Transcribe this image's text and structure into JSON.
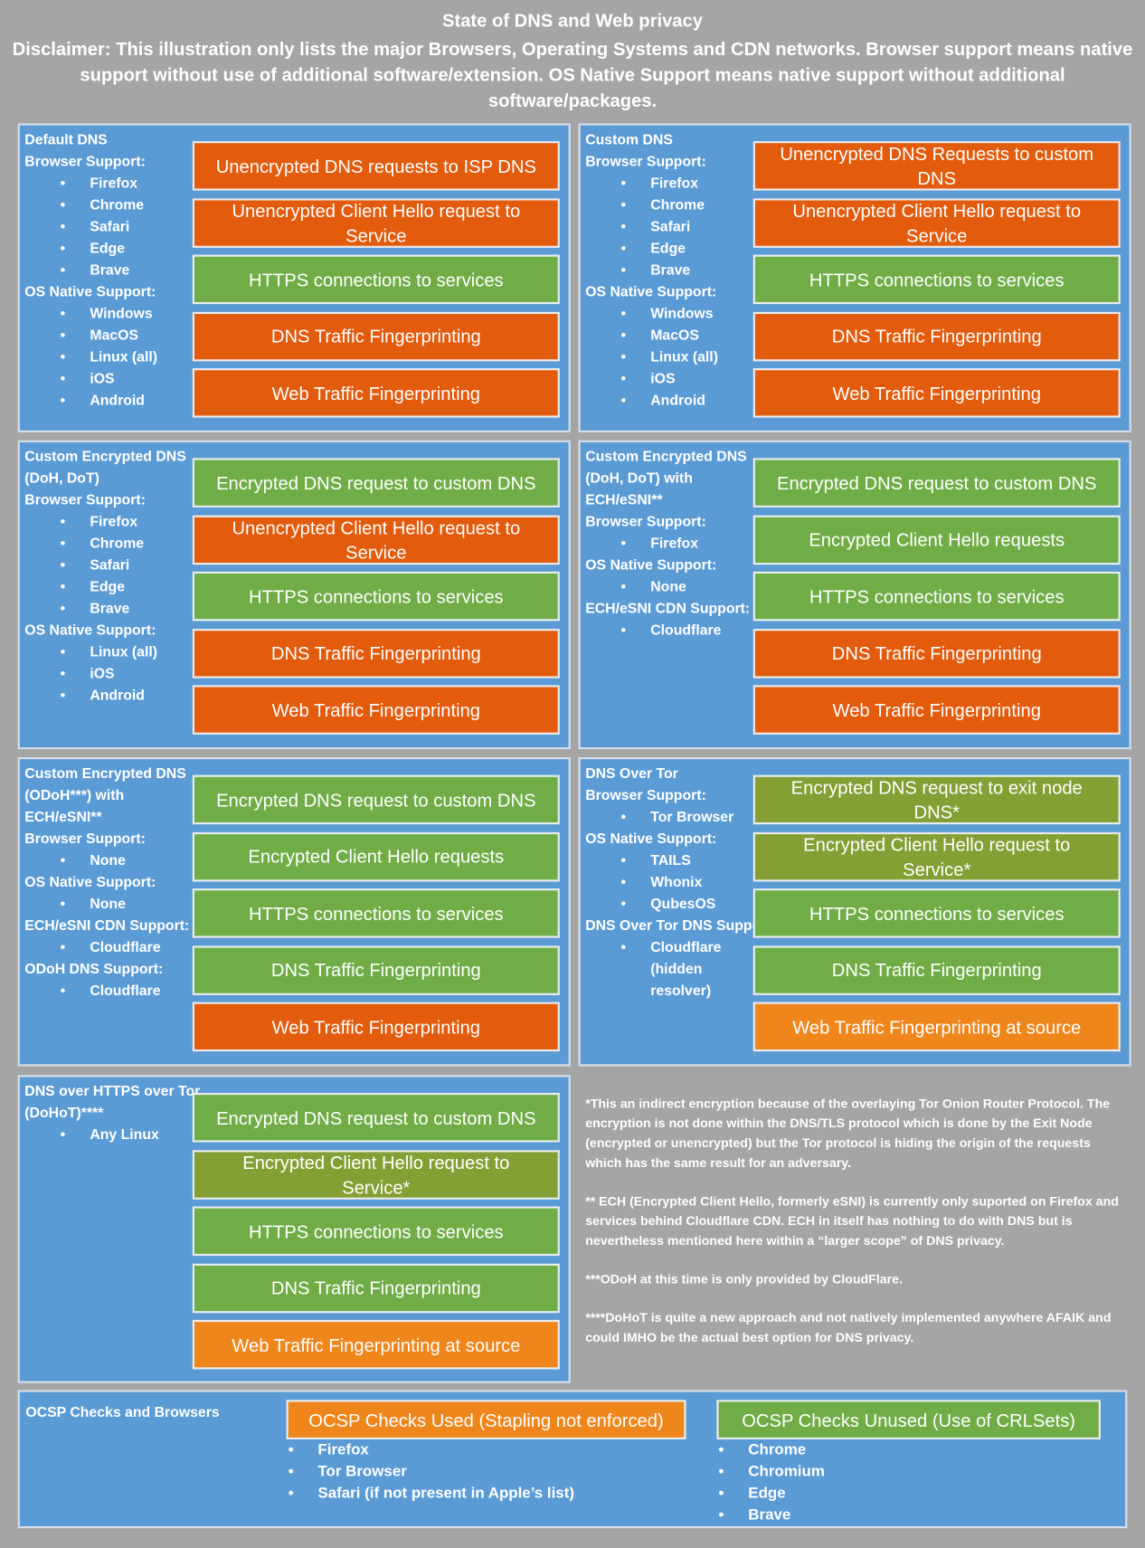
{
  "header": {
    "title": "State of DNS and Web privacy",
    "disclaimer": "Disclaimer: This illustration only lists the major Browsers, Operating Systems and CDN networks. Browser support means native support without use of additional software/extension. OS Native Support means native support without additional software/packages."
  },
  "panels": [
    {
      "title": "Default DNS",
      "sections": [
        {
          "label": "Browser Support:",
          "items": [
            "Firefox",
            "Chrome",
            "Safari",
            "Edge",
            "Brave"
          ]
        },
        {
          "label": "OS Native Support:",
          "items": [
            "Windows",
            "MacOS",
            "Linux (all)",
            "iOS",
            "Android"
          ]
        }
      ],
      "boxes": [
        {
          "text": "Unencrypted DNS requests to ISP DNS",
          "color": "#e35b0d"
        },
        {
          "text": "Unencrypted Client Hello request to Service",
          "color": "#e35b0d"
        },
        {
          "text": "HTTPS connections to services",
          "color": "#70ad47"
        },
        {
          "text": "DNS Traffic Fingerprinting",
          "color": "#e35b0d"
        },
        {
          "text": "Web Traffic Fingerprinting",
          "color": "#e35b0d"
        }
      ]
    },
    {
      "title": "Custom DNS",
      "sections": [
        {
          "label": "Browser Support:",
          "items": [
            "Firefox",
            "Chrome",
            "Safari",
            "Edge",
            "Brave"
          ]
        },
        {
          "label": "OS Native Support:",
          "items": [
            "Windows",
            "MacOS",
            "Linux (all)",
            "iOS",
            "Android"
          ]
        }
      ],
      "boxes": [
        {
          "text": "Unencrypted DNS Requests to custom DNS",
          "color": "#e35b0d"
        },
        {
          "text": "Unencrypted Client Hello request to Service",
          "color": "#e35b0d"
        },
        {
          "text": "HTTPS connections to services",
          "color": "#70ad47"
        },
        {
          "text": "DNS Traffic Fingerprinting",
          "color": "#e35b0d"
        },
        {
          "text": "Web Traffic Fingerprinting",
          "color": "#e35b0d"
        }
      ]
    },
    {
      "title": "Custom Encrypted DNS (DoH, DoT)",
      "sections": [
        {
          "label": "Browser Support:",
          "items": [
            "Firefox",
            "Chrome",
            "Safari",
            "Edge",
            "Brave"
          ]
        },
        {
          "label": "OS Native Support:",
          "items": [
            "Linux (all)",
            "iOS",
            "Android"
          ]
        }
      ],
      "boxes": [
        {
          "text": "Encrypted DNS request to custom DNS",
          "color": "#70ad47"
        },
        {
          "text": "Unencrypted Client Hello request to Service",
          "color": "#e35b0d"
        },
        {
          "text": "HTTPS connections to services",
          "color": "#70ad47"
        },
        {
          "text": "DNS Traffic Fingerprinting",
          "color": "#e35b0d"
        },
        {
          "text": "Web Traffic Fingerprinting",
          "color": "#e35b0d"
        }
      ]
    },
    {
      "title": "Custom Encrypted DNS (DoH, DoT) with ECH/eSNI**",
      "sections": [
        {
          "label": "Browser Support:",
          "items": [
            "Firefox"
          ]
        },
        {
          "label": "OS Native Support:",
          "items": [
            "None"
          ]
        },
        {
          "label": "ECH/eSNI CDN Support:",
          "items": [
            "Cloudflare"
          ]
        }
      ],
      "boxes": [
        {
          "text": "Encrypted DNS request to custom DNS",
          "color": "#70ad47"
        },
        {
          "text": "Encrypted Client Hello requests",
          "color": "#70ad47"
        },
        {
          "text": "HTTPS connections to services",
          "color": "#70ad47"
        },
        {
          "text": "DNS Traffic Fingerprinting",
          "color": "#e35b0d"
        },
        {
          "text": "Web Traffic Fingerprinting",
          "color": "#e35b0d"
        }
      ]
    },
    {
      "title": "Custom Encrypted DNS (ODoH***) with ECH/eSNI**",
      "sections": [
        {
          "label": "Browser Support:",
          "items": [
            "None"
          ]
        },
        {
          "label": "OS Native Support:",
          "items": [
            "None"
          ]
        },
        {
          "label": "ECH/eSNI CDN Support:",
          "items": [
            "Cloudflare"
          ]
        },
        {
          "label": "ODoH DNS Support:",
          "items": [
            "Cloudflare"
          ]
        }
      ],
      "boxes": [
        {
          "text": "Encrypted DNS request to custom DNS",
          "color": "#70ad47"
        },
        {
          "text": "Encrypted Client Hello requests",
          "color": "#70ad47"
        },
        {
          "text": "HTTPS connections to services",
          "color": "#70ad47"
        },
        {
          "text": "DNS Traffic Fingerprinting",
          "color": "#70ad47"
        },
        {
          "text": "Web Traffic Fingerprinting",
          "color": "#e35b0d"
        }
      ]
    },
    {
      "title": "DNS Over Tor",
      "sections": [
        {
          "label": "Browser Support:",
          "items": [
            "Tor Browser"
          ]
        },
        {
          "label": "OS Native Support:",
          "items": [
            "TAILS",
            "Whonix",
            "QubesOS"
          ]
        },
        {
          "label": "DNS Over Tor DNS Support:",
          "items": [
            "Cloudflare (hidden resolver)"
          ]
        }
      ],
      "boxes": [
        {
          "text": "Encrypted DNS request to exit node DNS*",
          "color": "#84a034"
        },
        {
          "text": "Encrypted Client Hello request to Service*",
          "color": "#84a034"
        },
        {
          "text": "HTTPS connections to services",
          "color": "#70ad47"
        },
        {
          "text": "DNS Traffic Fingerprinting",
          "color": "#70ad47"
        },
        {
          "text": "Web Traffic Fingerprinting at source",
          "color": "#ef861c"
        }
      ]
    },
    {
      "title": "DNS over HTTPS over Tor (DoHoT)****",
      "sections": [
        {
          "label": "",
          "items": [
            "Any Linux"
          ]
        }
      ],
      "boxes": [
        {
          "text": "Encrypted DNS request to custom DNS",
          "color": "#70ad47"
        },
        {
          "text": "Encrypted Client Hello request to Service*",
          "color": "#84a034"
        },
        {
          "text": "HTTPS connections to services",
          "color": "#70ad47"
        },
        {
          "text": "DNS Traffic Fingerprinting",
          "color": "#70ad47"
        },
        {
          "text": "Web Traffic Fingerprinting at source",
          "color": "#ef861c"
        }
      ]
    }
  ],
  "footnotes": [
    "*This an indirect encryption because of the overlaying Tor Onion Router Protocol. The encryption is not done within the DNS/TLS protocol which is done by the Exit Node (encrypted or unencrypted) but the Tor protocol is hiding the origin of the requests which has the same result for an adversary.",
    "** ECH (Encrypted Client Hello, formerly eSNI) is currently only suported on Firefox and services behind Cloudflare CDN. ECH in itself has nothing to do with DNS but is nevertheless mentioned here within a “larger scope” of DNS privacy.",
    "***ODoH at this time is only provided by CloudFlare.",
    "****DoHoT is quite a new approach and not natively implemented anywhere AFAIK and could IMHO be the actual best option for DNS privacy."
  ],
  "ocsp": {
    "title": "OCSP Checks and Browsers",
    "groups": [
      {
        "label": "OCSP Checks Used (Stapling not enforced)",
        "color": "#ef861c",
        "items": [
          "Firefox",
          "Tor Browser",
          "Safari (if not present in Apple’s list)"
        ]
      },
      {
        "label": "OCSP Checks Unused (Use of CRLSets)",
        "color": "#70ad47",
        "items": [
          "Chrome",
          "Chromium",
          "Edge",
          "Brave"
        ]
      }
    ]
  }
}
